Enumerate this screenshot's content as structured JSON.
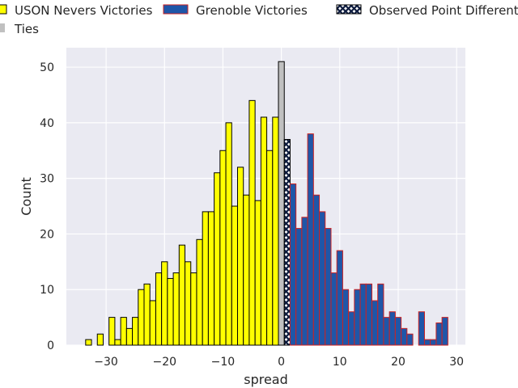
{
  "chart_data": {
    "type": "bar",
    "xlabel": "spread",
    "ylabel": "Count",
    "xlim": [
      -36.8,
      31.5
    ],
    "ylim": [
      0,
      53.5
    ],
    "xticks": [
      -30,
      -20,
      -10,
      0,
      10,
      20,
      30
    ],
    "xtick_labels": [
      "−30",
      "−20",
      "−10",
      "0",
      "10",
      "20",
      "30"
    ],
    "yticks": [
      0,
      10,
      20,
      30,
      40,
      50
    ],
    "ytick_labels": [
      "0",
      "10",
      "20",
      "30",
      "40",
      "50"
    ],
    "grid": true,
    "legend_placement": "top",
    "series": [
      {
        "name": "USON Nevers Victories",
        "color": "#ffff00",
        "edge_color": "#000000",
        "x": [
          -33,
          -31,
          -29,
          -28,
          -27,
          -26,
          -25,
          -24,
          -23,
          -22,
          -21,
          -20,
          -19,
          -18,
          -17,
          -16,
          -15,
          -14,
          -13,
          -12,
          -11,
          -10,
          -9,
          -8,
          -7,
          -6,
          -5,
          -4,
          -3,
          -2,
          -1
        ],
        "values": [
          1,
          2,
          5,
          1,
          5,
          3,
          5,
          10,
          11,
          8,
          13,
          15,
          12,
          13,
          18,
          15,
          13,
          19,
          24,
          24,
          31,
          35,
          40,
          25,
          32,
          27,
          44,
          26,
          41,
          35,
          41
        ]
      },
      {
        "name": "Ties",
        "color": "#c0c0c0",
        "edge_color": "#000000",
        "x": [
          0
        ],
        "values": [
          51
        ]
      },
      {
        "name": "Observed Point Differential",
        "color": "#ffffff",
        "hatch_color": "#0d1b3e",
        "edge_color": "#000000",
        "pattern": "cross-hatch",
        "x": [
          1
        ],
        "values": [
          37
        ]
      },
      {
        "name": "Grenoble Victories",
        "color": "#1f56a8",
        "edge_color": "#cc2222",
        "x": [
          2,
          3,
          4,
          5,
          6,
          7,
          8,
          9,
          10,
          11,
          12,
          13,
          14,
          15,
          16,
          17,
          18,
          19,
          20,
          21,
          22,
          24,
          25,
          26,
          27,
          28
        ],
        "values": [
          29,
          21,
          23,
          38,
          27,
          24,
          21,
          13,
          17,
          10,
          6,
          10,
          11,
          11,
          8,
          11,
          5,
          6,
          5,
          3,
          2,
          6,
          1,
          1,
          4,
          5
        ]
      }
    ],
    "legend_order": [
      "USON Nevers Victories",
      "Grenoble Victories",
      "Observed Point Differential",
      "Ties"
    ]
  }
}
